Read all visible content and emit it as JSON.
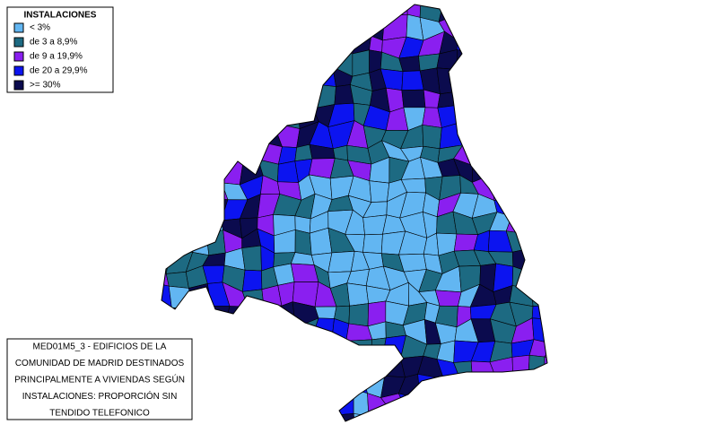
{
  "legend": {
    "title": "INSTALACIONES",
    "items": [
      {
        "label": "< 3%",
        "color": "#62b6f2"
      },
      {
        "label": "de 3 a 8,9%",
        "color": "#1d6a82"
      },
      {
        "label": "de 9 a 19,9%",
        "color": "#8a1ff0"
      },
      {
        "label": "de 20 a 29,9%",
        "color": "#0c14f0"
      },
      {
        "label": ">= 30%",
        "color": "#0b0b4e"
      }
    ]
  },
  "caption": {
    "lines": [
      "MED01M5_3 - EDIFICIOS DE LA",
      "COMUNIDAD DE MADRID DESTINADOS",
      "PRINCIPALMENTE A VIVIENDAS  SEGÚN",
      "INSTALACIONES: PROPORCIÓN SIN",
      "TENDIDO TELEFONICO"
    ]
  }
}
